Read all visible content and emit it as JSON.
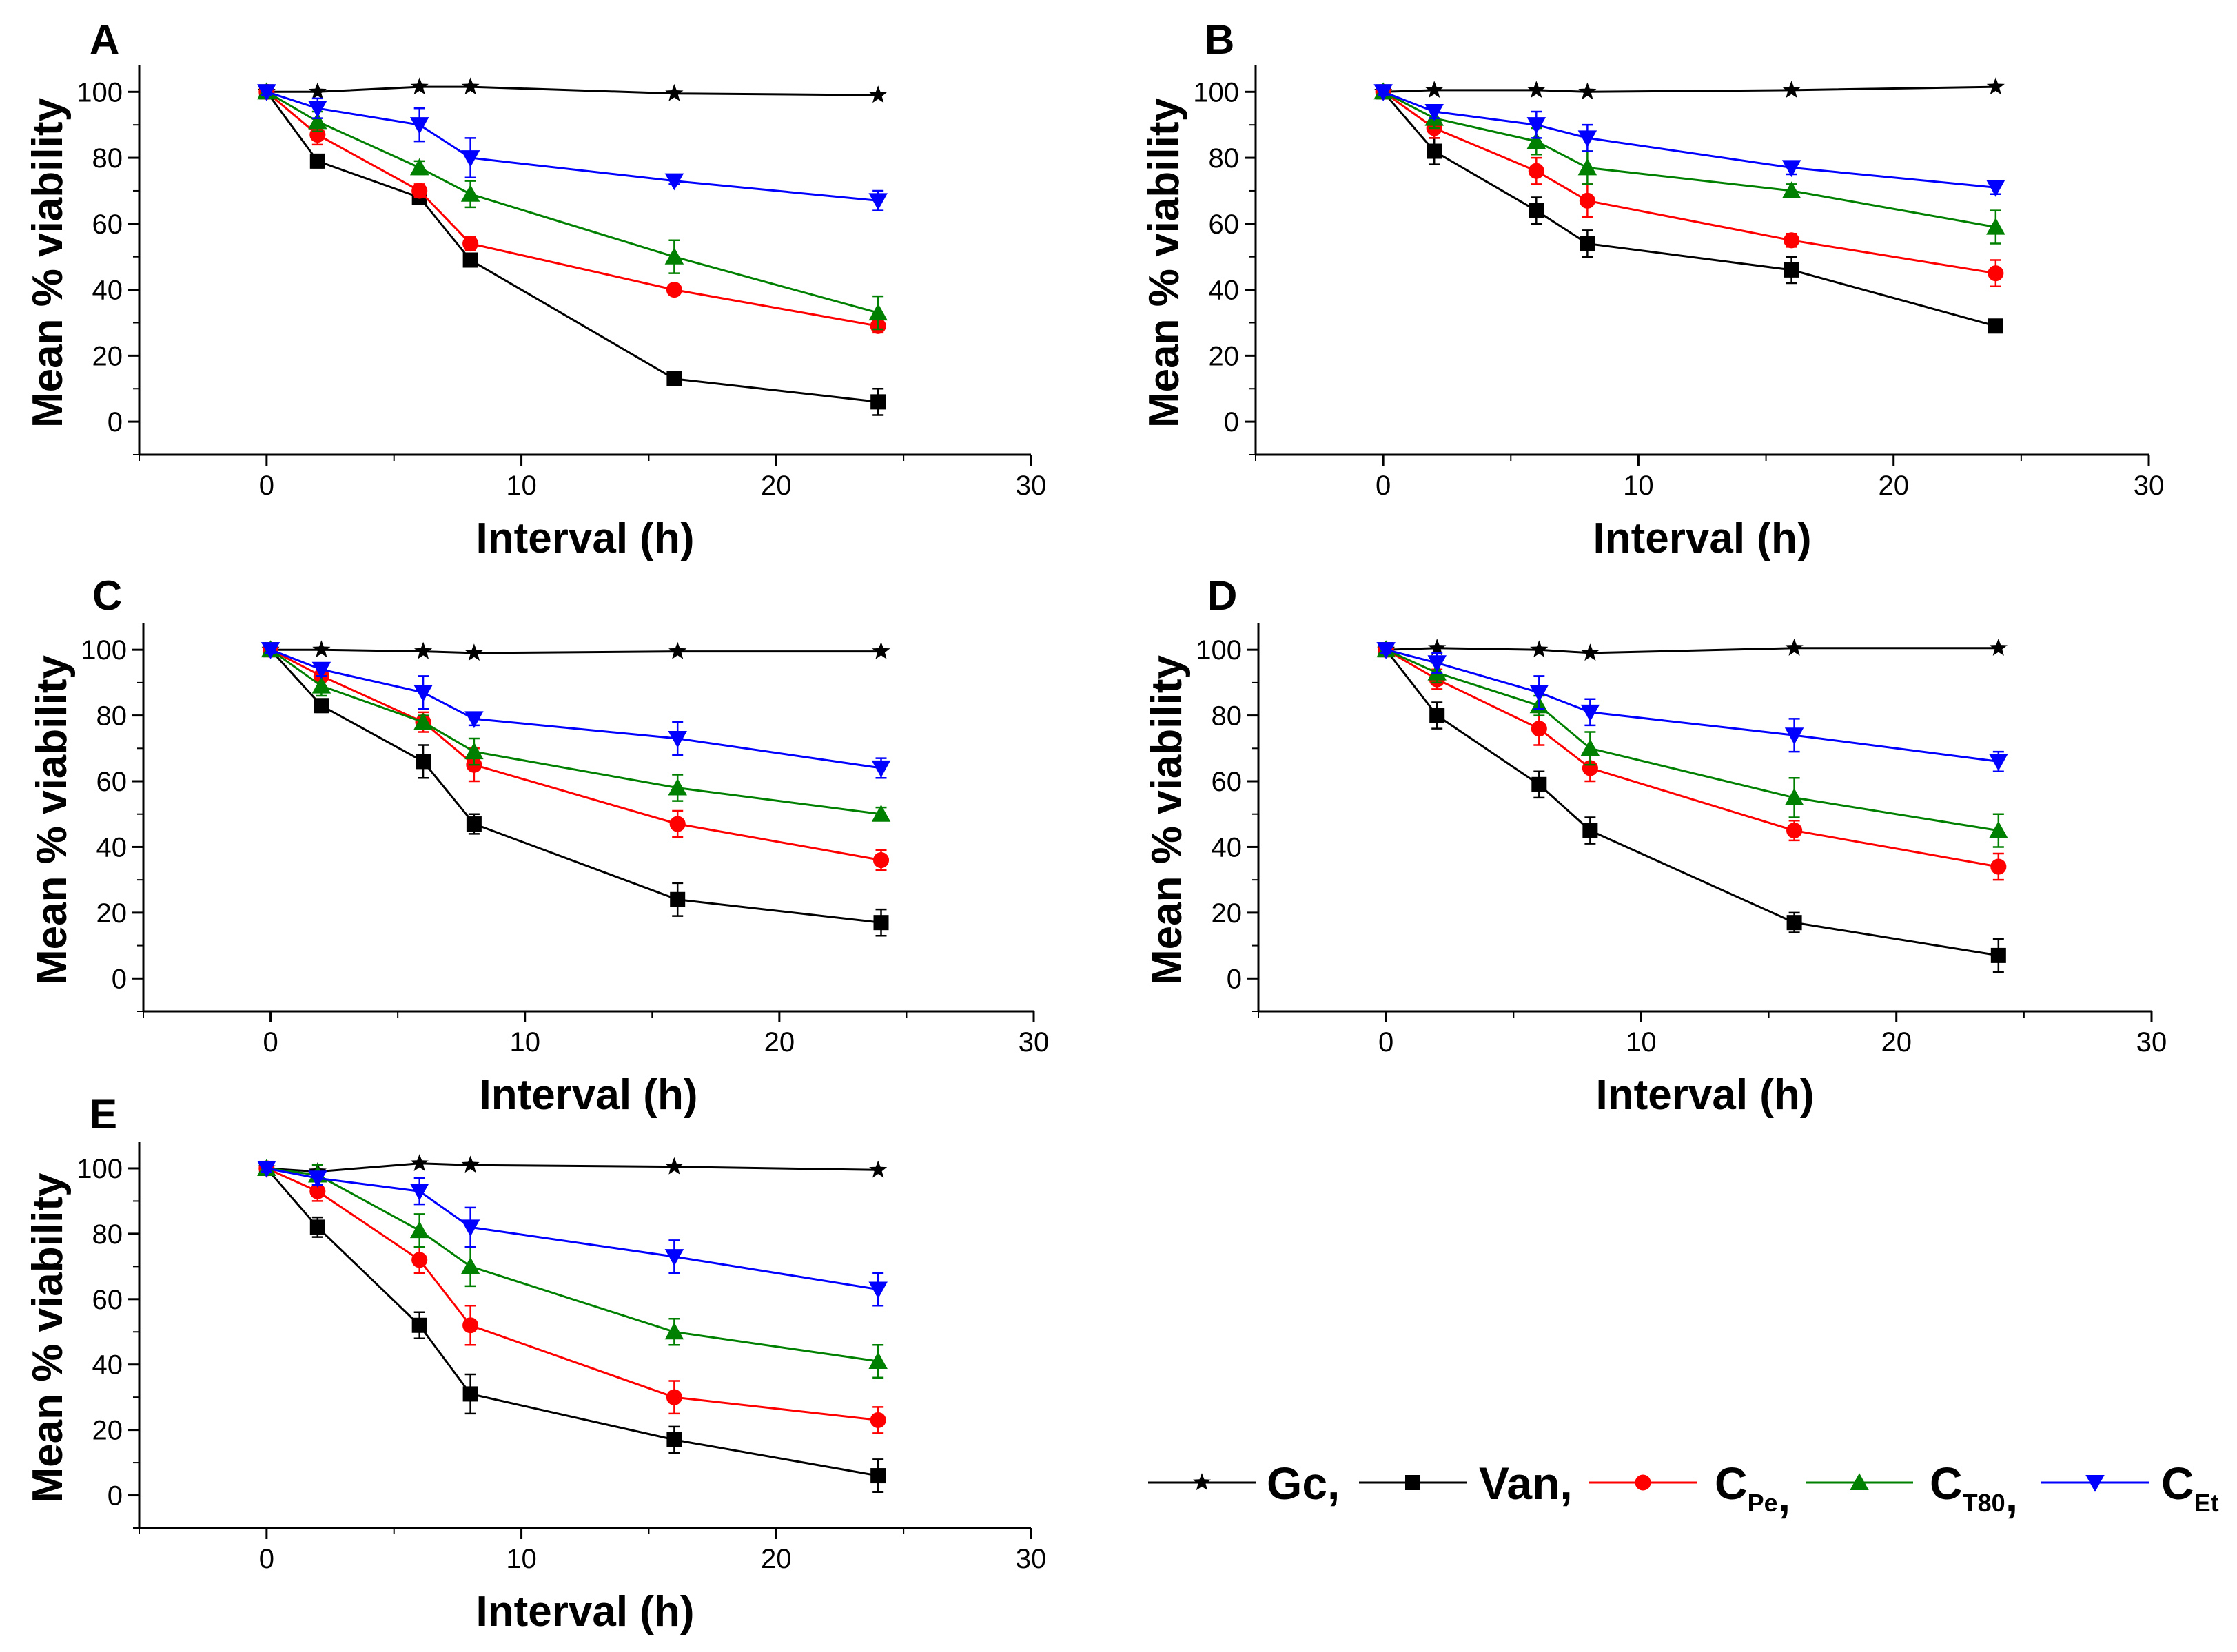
{
  "figure": {
    "x_ticks": [
      0,
      10,
      20,
      30
    ],
    "y_ticks": [
      0,
      20,
      40,
      60,
      80,
      100
    ],
    "xlim": [
      -5,
      30
    ],
    "ylim": [
      -10,
      108
    ]
  },
  "series_styles": [
    {
      "key": "gc",
      "name": "Gc",
      "color": "#000000",
      "marker": "star"
    },
    {
      "key": "van",
      "name": "Van",
      "color": "#000000",
      "marker": "square"
    },
    {
      "key": "cpe",
      "name": "C",
      "color": "#ff0000",
      "marker": "circle"
    },
    {
      "key": "ct80",
      "name": "C",
      "color": "#008000",
      "marker": "triangle-up"
    },
    {
      "key": "cet",
      "name": "C",
      "color": "#0000ff",
      "marker": "triangle-down"
    }
  ],
  "legend": {
    "items": [
      {
        "key": "gc",
        "label": "Gc,",
        "sub": ""
      },
      {
        "key": "van",
        "label": "Van,",
        "sub": ""
      },
      {
        "key": "cpe",
        "label": "C",
        "sub": "Pe",
        "suffix": ","
      },
      {
        "key": "ct80",
        "label": "C",
        "sub": "T80",
        "suffix": ","
      },
      {
        "key": "cet",
        "label": "C",
        "sub": "Et",
        "suffix": ""
      }
    ]
  },
  "chart_data": [
    {
      "type": "line",
      "panel": "A",
      "xlabel": "Interval (h)",
      "ylabel": "Mean % viability",
      "x": [
        0,
        2,
        6,
        8,
        16,
        24
      ],
      "series": [
        {
          "key": "gc",
          "name": "Gc",
          "values": [
            100,
            100,
            101.5,
            101.5,
            99.5,
            99
          ]
        },
        {
          "key": "van",
          "name": "Van",
          "values": [
            100,
            79,
            68,
            49,
            13,
            6
          ],
          "errors": [
            1,
            2,
            2,
            2,
            1,
            4
          ]
        },
        {
          "key": "cpe",
          "name": "CPe",
          "values": [
            100,
            87,
            70,
            54,
            40,
            29
          ],
          "errors": [
            1,
            3,
            2,
            2,
            1,
            2
          ]
        },
        {
          "key": "ct80",
          "name": "CT80",
          "values": [
            100,
            91,
            77,
            69,
            50,
            33
          ],
          "errors": [
            1,
            3,
            2,
            4,
            5,
            5
          ]
        },
        {
          "key": "cet",
          "name": "CEt",
          "values": [
            100,
            95,
            90,
            80,
            73,
            67
          ],
          "errors": [
            1,
            3,
            5,
            6,
            1,
            3
          ]
        }
      ]
    },
    {
      "type": "line",
      "panel": "B",
      "xlabel": "Interval (h)",
      "ylabel": "Mean % viability",
      "x": [
        0,
        2,
        6,
        8,
        16,
        24
      ],
      "series": [
        {
          "key": "gc",
          "name": "Gc",
          "values": [
            100,
            100.5,
            100.5,
            100,
            100.5,
            101.5
          ]
        },
        {
          "key": "van",
          "name": "Van",
          "values": [
            100,
            82,
            64,
            54,
            46,
            29
          ],
          "errors": [
            1,
            4,
            4,
            4,
            4,
            1
          ]
        },
        {
          "key": "cpe",
          "name": "CPe",
          "values": [
            100,
            89,
            76,
            67,
            55,
            45
          ],
          "errors": [
            1,
            3,
            4,
            5,
            2,
            4
          ]
        },
        {
          "key": "ct80",
          "name": "CT80",
          "values": [
            100,
            92,
            85,
            77,
            70,
            59
          ],
          "errors": [
            1,
            3,
            4,
            5,
            2,
            5
          ]
        },
        {
          "key": "cet",
          "name": "CEt",
          "values": [
            100,
            94,
            90,
            86,
            77,
            71
          ],
          "errors": [
            1,
            2,
            4,
            4,
            2,
            2
          ]
        }
      ]
    },
    {
      "type": "line",
      "panel": "C",
      "xlabel": "Interval (h)",
      "ylabel": "Mean % viability",
      "x": [
        0,
        2,
        6,
        8,
        16,
        24
      ],
      "series": [
        {
          "key": "gc",
          "name": "Gc",
          "values": [
            100,
            100,
            99.5,
            99,
            99.5,
            99.5
          ]
        },
        {
          "key": "van",
          "name": "Van",
          "values": [
            100,
            83,
            66,
            47,
            24,
            17
          ],
          "errors": [
            1,
            2,
            5,
            3,
            5,
            4
          ]
        },
        {
          "key": "cpe",
          "name": "CPe",
          "values": [
            100,
            92,
            78,
            65,
            47,
            36
          ],
          "errors": [
            1,
            3,
            3,
            5,
            4,
            3
          ]
        },
        {
          "key": "ct80",
          "name": "CT80",
          "values": [
            100,
            89,
            78,
            69,
            58,
            50
          ],
          "errors": [
            1,
            3,
            2,
            4,
            4,
            2
          ]
        },
        {
          "key": "cet",
          "name": "CEt",
          "values": [
            100,
            94,
            87,
            79,
            73,
            64
          ],
          "errors": [
            1,
            2,
            5,
            2,
            5,
            3
          ]
        }
      ]
    },
    {
      "type": "line",
      "panel": "D",
      "xlabel": "Interval (h)",
      "ylabel": "Mean % viability",
      "x": [
        0,
        2,
        6,
        8,
        16,
        24
      ],
      "series": [
        {
          "key": "gc",
          "name": "Gc",
          "values": [
            100,
            100.5,
            100,
            99,
            100.5,
            100.5
          ]
        },
        {
          "key": "van",
          "name": "Van",
          "values": [
            100,
            80,
            59,
            45,
            17,
            7
          ],
          "errors": [
            1,
            4,
            4,
            4,
            3,
            5
          ]
        },
        {
          "key": "cpe",
          "name": "CPe",
          "values": [
            100,
            91,
            76,
            64,
            45,
            34
          ],
          "errors": [
            1,
            3,
            5,
            4,
            3,
            4
          ]
        },
        {
          "key": "ct80",
          "name": "CT80",
          "values": [
            100,
            93,
            83,
            70,
            55,
            45
          ],
          "errors": [
            1,
            3,
            3,
            5,
            6,
            5
          ]
        },
        {
          "key": "cet",
          "name": "CEt",
          "values": [
            100,
            96,
            87,
            81,
            74,
            66
          ],
          "errors": [
            1,
            3,
            5,
            4,
            5,
            3
          ]
        }
      ]
    },
    {
      "type": "line",
      "panel": "E",
      "xlabel": "Interval (h)",
      "ylabel": "Mean % viability",
      "x": [
        0,
        2,
        6,
        8,
        16,
        24
      ],
      "series": [
        {
          "key": "gc",
          "name": "Gc",
          "values": [
            100,
            99,
            101.5,
            101,
            100.5,
            99.5
          ]
        },
        {
          "key": "van",
          "name": "Van",
          "values": [
            100,
            82,
            52,
            31,
            17,
            6
          ],
          "errors": [
            1,
            3,
            4,
            6,
            4,
            5
          ]
        },
        {
          "key": "cpe",
          "name": "CPe",
          "values": [
            100,
            93,
            72,
            52,
            30,
            23
          ],
          "errors": [
            1,
            3,
            4,
            6,
            5,
            4
          ]
        },
        {
          "key": "ct80",
          "name": "CT80",
          "values": [
            100,
            98,
            81,
            70,
            50,
            41
          ],
          "errors": [
            1,
            3,
            5,
            6,
            4,
            5
          ]
        },
        {
          "key": "cet",
          "name": "CEt",
          "values": [
            100,
            97,
            93,
            82,
            73,
            63
          ],
          "errors": [
            1,
            2,
            4,
            6,
            5,
            5
          ]
        }
      ]
    }
  ]
}
